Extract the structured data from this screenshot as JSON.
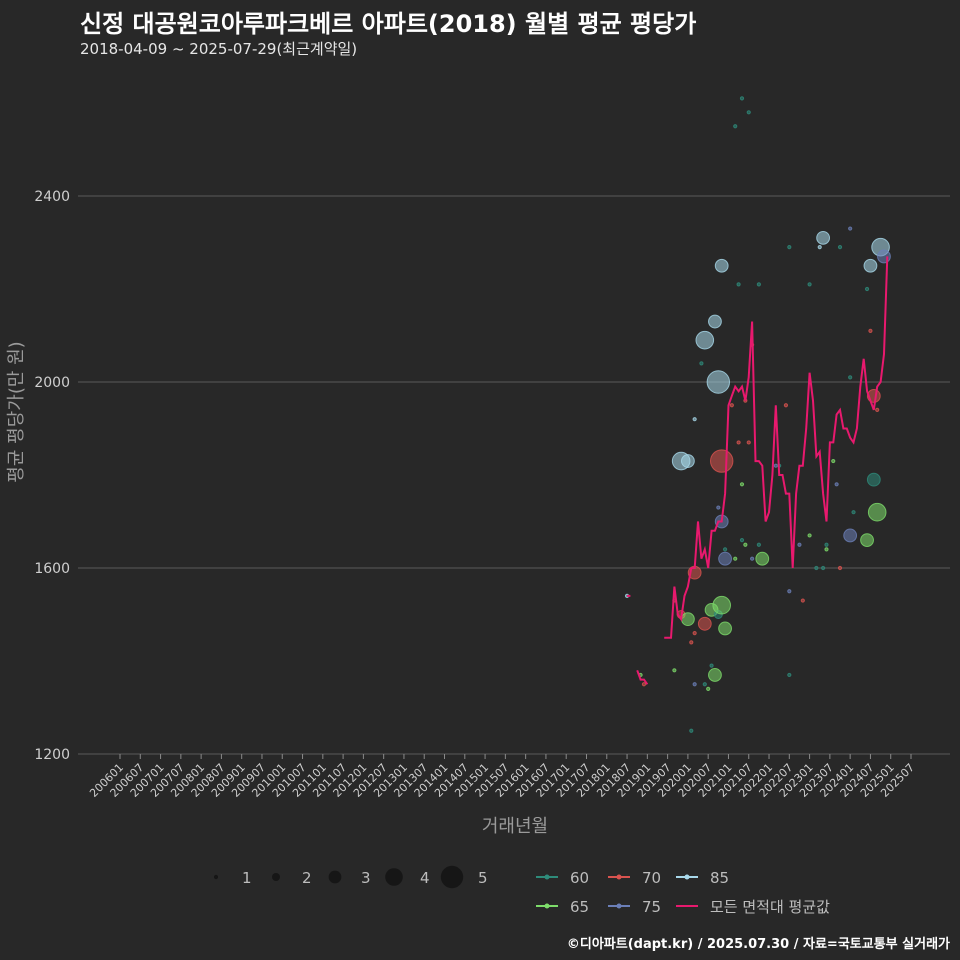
{
  "title": "신정 대공원코아루파크베르 아파트(2018) 월별 평균 평당가",
  "subtitle": "2018-04-09 ~ 2025-07-29(최근계약일)",
  "footer": "©디아파트(dapt.kr) / 2025.07.30 / 자료=국토교통부 실거래가",
  "chart_data": {
    "type": "scatter",
    "xlabel": "거래년월",
    "ylabel": "평균 평당가(만 원)",
    "ylim": [
      1200,
      2520
    ],
    "yticks": [
      1200,
      1600,
      2000,
      2400
    ],
    "xticks": [
      "200601",
      "200607",
      "200701",
      "200707",
      "200801",
      "200807",
      "200901",
      "200907",
      "201001",
      "201007",
      "201101",
      "201107",
      "201201",
      "201207",
      "201301",
      "201307",
      "201401",
      "201407",
      "201501",
      "201507",
      "201601",
      "201607",
      "201701",
      "201707",
      "201801",
      "201807",
      "201901",
      "201907",
      "202001",
      "202007",
      "202101",
      "202107",
      "202201",
      "202207",
      "202301",
      "202307",
      "202401",
      "202407",
      "202501",
      "202507"
    ],
    "size_legend": [
      "1",
      "2",
      "3",
      "4",
      "5"
    ],
    "area_legend": [
      {
        "name": "60",
        "color": "#2e8b7a"
      },
      {
        "name": "70",
        "color": "#d9534f"
      },
      {
        "name": "85",
        "color": "#a8d8ea"
      },
      {
        "name": "65",
        "color": "#7ddc6a"
      },
      {
        "name": "75",
        "color": "#6b7fb8"
      },
      {
        "name": "모든 면적대 평균값",
        "color": "#e8196e"
      }
    ],
    "points": [
      {
        "x": "2018-07",
        "y": 1540,
        "area": "85",
        "n": 1
      },
      {
        "x": "2018-11",
        "y": 1370,
        "area": "65",
        "n": 1
      },
      {
        "x": "2018-12",
        "y": 1350,
        "area": "70",
        "n": 1
      },
      {
        "x": "2019-09",
        "y": 1530,
        "area": "70",
        "n": 1
      },
      {
        "x": "2019-09",
        "y": 1380,
        "area": "65",
        "n": 1
      },
      {
        "x": "2019-11",
        "y": 1830,
        "area": "85",
        "n": 4
      },
      {
        "x": "2019-11",
        "y": 1500,
        "area": "70",
        "n": 2
      },
      {
        "x": "2020-01",
        "y": 1830,
        "area": "85",
        "n": 3
      },
      {
        "x": "2020-01",
        "y": 1490,
        "area": "65",
        "n": 3
      },
      {
        "x": "2020-02",
        "y": 1440,
        "area": "70",
        "n": 1
      },
      {
        "x": "2020-02",
        "y": 1250,
        "area": "60",
        "n": 1
      },
      {
        "x": "2020-03",
        "y": 1590,
        "area": "70",
        "n": 3
      },
      {
        "x": "2020-03",
        "y": 1350,
        "area": "75",
        "n": 1
      },
      {
        "x": "2020-03",
        "y": 1460,
        "area": "70",
        "n": 1
      },
      {
        "x": "2020-03",
        "y": 1920,
        "area": "85",
        "n": 1
      },
      {
        "x": "2020-05",
        "y": 2040,
        "area": "60",
        "n": 1
      },
      {
        "x": "2020-06",
        "y": 2090,
        "area": "85",
        "n": 4
      },
      {
        "x": "2020-06",
        "y": 1480,
        "area": "70",
        "n": 3
      },
      {
        "x": "2020-06",
        "y": 1350,
        "area": "60",
        "n": 1
      },
      {
        "x": "2020-07",
        "y": 1340,
        "area": "65",
        "n": 1
      },
      {
        "x": "2020-08",
        "y": 1510,
        "area": "65",
        "n": 3
      },
      {
        "x": "2020-08",
        "y": 1390,
        "area": "60",
        "n": 1
      },
      {
        "x": "2020-09",
        "y": 2130,
        "area": "85",
        "n": 3
      },
      {
        "x": "2020-09",
        "y": 1370,
        "area": "65",
        "n": 3
      },
      {
        "x": "2020-10",
        "y": 2000,
        "area": "85",
        "n": 5
      },
      {
        "x": "2020-10",
        "y": 1730,
        "area": "75",
        "n": 1
      },
      {
        "x": "2020-10",
        "y": 1500,
        "area": "60",
        "n": 2
      },
      {
        "x": "2020-11",
        "y": 1830,
        "area": "70",
        "n": 5
      },
      {
        "x": "2020-11",
        "y": 1700,
        "area": "75",
        "n": 3
      },
      {
        "x": "2020-11",
        "y": 2250,
        "area": "85",
        "n": 3
      },
      {
        "x": "2020-11",
        "y": 1520,
        "area": "65",
        "n": 4
      },
      {
        "x": "2020-12",
        "y": 1620,
        "area": "75",
        "n": 3
      },
      {
        "x": "2020-12",
        "y": 1470,
        "area": "65",
        "n": 3
      },
      {
        "x": "2020-12",
        "y": 1640,
        "area": "60",
        "n": 1
      },
      {
        "x": "2021-02",
        "y": 1950,
        "area": "70",
        "n": 1
      },
      {
        "x": "2021-03",
        "y": 2550,
        "area": "60",
        "n": 1
      },
      {
        "x": "2021-03",
        "y": 1620,
        "area": "65",
        "n": 1
      },
      {
        "x": "2021-04",
        "y": 2210,
        "area": "60",
        "n": 1
      },
      {
        "x": "2021-04",
        "y": 1870,
        "area": "70",
        "n": 1
      },
      {
        "x": "2021-05",
        "y": 2610,
        "area": "60",
        "n": 1
      },
      {
        "x": "2021-05",
        "y": 1780,
        "area": "65",
        "n": 1
      },
      {
        "x": "2021-05",
        "y": 1660,
        "area": "60",
        "n": 1
      },
      {
        "x": "2021-06",
        "y": 1960,
        "area": "70",
        "n": 1
      },
      {
        "x": "2021-06",
        "y": 1650,
        "area": "65",
        "n": 1
      },
      {
        "x": "2021-07",
        "y": 2580,
        "area": "60",
        "n": 1
      },
      {
        "x": "2021-07",
        "y": 1870,
        "area": "70",
        "n": 1
      },
      {
        "x": "2021-08",
        "y": 2080,
        "area": "70",
        "n": 1
      },
      {
        "x": "2021-08",
        "y": 1620,
        "area": "75",
        "n": 1
      },
      {
        "x": "2021-10",
        "y": 2210,
        "area": "60",
        "n": 1
      },
      {
        "x": "2021-10",
        "y": 1650,
        "area": "60",
        "n": 1
      },
      {
        "x": "2021-11",
        "y": 1620,
        "area": "65",
        "n": 3
      },
      {
        "x": "2022-03",
        "y": 1820,
        "area": "75",
        "n": 1
      },
      {
        "x": "2022-04",
        "y": 1820,
        "area": "60",
        "n": 1
      },
      {
        "x": "2022-06",
        "y": 1950,
        "area": "70",
        "n": 1
      },
      {
        "x": "2022-07",
        "y": 1550,
        "area": "75",
        "n": 1
      },
      {
        "x": "2022-07",
        "y": 1370,
        "area": "60",
        "n": 1
      },
      {
        "x": "2022-07",
        "y": 2290,
        "area": "60",
        "n": 1
      },
      {
        "x": "2022-10",
        "y": 1650,
        "area": "75",
        "n": 1
      },
      {
        "x": "2022-11",
        "y": 1530,
        "area": "70",
        "n": 1
      },
      {
        "x": "2023-01",
        "y": 1670,
        "area": "65",
        "n": 1
      },
      {
        "x": "2023-01",
        "y": 2210,
        "area": "60",
        "n": 1
      },
      {
        "x": "2023-03",
        "y": 1600,
        "area": "60",
        "n": 1
      },
      {
        "x": "2023-04",
        "y": 2290,
        "area": "85",
        "n": 1
      },
      {
        "x": "2023-05",
        "y": 2310,
        "area": "85",
        "n": 3
      },
      {
        "x": "2023-05",
        "y": 1600,
        "area": "60",
        "n": 1
      },
      {
        "x": "2023-06",
        "y": 1640,
        "area": "65",
        "n": 1
      },
      {
        "x": "2023-06",
        "y": 1650,
        "area": "60",
        "n": 1
      },
      {
        "x": "2023-08",
        "y": 1830,
        "area": "65",
        "n": 1
      },
      {
        "x": "2023-09",
        "y": 1780,
        "area": "75",
        "n": 1
      },
      {
        "x": "2023-10",
        "y": 1600,
        "area": "70",
        "n": 1
      },
      {
        "x": "2023-10",
        "y": 2290,
        "area": "60",
        "n": 1
      },
      {
        "x": "2024-01",
        "y": 2330,
        "area": "75",
        "n": 1
      },
      {
        "x": "2024-01",
        "y": 2010,
        "area": "60",
        "n": 1
      },
      {
        "x": "2024-01",
        "y": 1670,
        "area": "75",
        "n": 3
      },
      {
        "x": "2024-02",
        "y": 1720,
        "area": "60",
        "n": 1
      },
      {
        "x": "2024-06",
        "y": 2200,
        "area": "60",
        "n": 1
      },
      {
        "x": "2024-06",
        "y": 1660,
        "area": "65",
        "n": 3
      },
      {
        "x": "2024-07",
        "y": 2250,
        "area": "85",
        "n": 3
      },
      {
        "x": "2024-07",
        "y": 2110,
        "area": "70",
        "n": 1
      },
      {
        "x": "2024-08",
        "y": 1970,
        "area": "70",
        "n": 3
      },
      {
        "x": "2024-08",
        "y": 1790,
        "area": "60",
        "n": 3
      },
      {
        "x": "2024-09",
        "y": 1720,
        "area": "65",
        "n": 4
      },
      {
        "x": "2024-09",
        "y": 1940,
        "area": "70",
        "n": 1
      },
      {
        "x": "2024-10",
        "y": 2290,
        "area": "85",
        "n": 4
      },
      {
        "x": "2024-11",
        "y": 2270,
        "area": "75",
        "n": 3
      }
    ],
    "avg_line": [
      [
        [
          "2018-07",
          1540
        ],
        [
          "2018-08",
          1540
        ]
      ],
      [
        [
          "2018-10",
          1380
        ],
        [
          "2018-11",
          1360
        ],
        [
          "2018-12",
          1360
        ],
        [
          "2019-01",
          1350
        ]
      ],
      [
        [
          "2019-06",
          1450
        ],
        [
          "2019-07",
          1450
        ],
        [
          "2019-08",
          1450
        ],
        [
          "2019-09",
          1560
        ],
        [
          "2019-10",
          1500
        ],
        [
          "2019-11",
          1490
        ],
        [
          "2019-12",
          1540
        ],
        [
          "2020-01",
          1560
        ],
        [
          "2020-02",
          1600
        ],
        [
          "2020-03",
          1600
        ],
        [
          "2020-04",
          1700
        ],
        [
          "2020-05",
          1620
        ],
        [
          "2020-06",
          1640
        ],
        [
          "2020-07",
          1600
        ],
        [
          "2020-08",
          1680
        ],
        [
          "2020-09",
          1680
        ],
        [
          "2020-10",
          1700
        ],
        [
          "2020-11",
          1700
        ],
        [
          "2020-12",
          1760
        ],
        [
          "2021-01",
          1950
        ],
        [
          "2021-02",
          1970
        ],
        [
          "2021-03",
          1990
        ],
        [
          "2021-04",
          1980
        ],
        [
          "2021-05",
          1990
        ],
        [
          "2021-06",
          1960
        ],
        [
          "2021-07",
          2010
        ],
        [
          "2021-08",
          2130
        ],
        [
          "2021-09",
          1830
        ],
        [
          "2021-10",
          1830
        ],
        [
          "2021-11",
          1820
        ],
        [
          "2021-12",
          1700
        ],
        [
          "2022-01",
          1720
        ],
        [
          "2022-02",
          1800
        ],
        [
          "2022-03",
          1950
        ],
        [
          "2022-04",
          1800
        ],
        [
          "2022-05",
          1800
        ],
        [
          "2022-06",
          1760
        ],
        [
          "2022-07",
          1760
        ],
        [
          "2022-08",
          1600
        ],
        [
          "2022-09",
          1760
        ],
        [
          "2022-10",
          1820
        ],
        [
          "2022-11",
          1820
        ],
        [
          "2022-12",
          1900
        ],
        [
          "2023-01",
          2020
        ],
        [
          "2023-02",
          1960
        ],
        [
          "2023-03",
          1840
        ],
        [
          "2023-04",
          1850
        ],
        [
          "2023-05",
          1760
        ],
        [
          "2023-06",
          1700
        ],
        [
          "2023-07",
          1870
        ],
        [
          "2023-08",
          1870
        ],
        [
          "2023-09",
          1930
        ],
        [
          "2023-10",
          1940
        ],
        [
          "2023-11",
          1900
        ],
        [
          "2023-12",
          1900
        ],
        [
          "2024-01",
          1880
        ],
        [
          "2024-02",
          1870
        ],
        [
          "2024-03",
          1900
        ],
        [
          "2024-04",
          1990
        ],
        [
          "2024-05",
          2050
        ],
        [
          "2024-06",
          1980
        ],
        [
          "2024-07",
          1960
        ],
        [
          "2024-08",
          1940
        ],
        [
          "2024-09",
          1990
        ],
        [
          "2024-10",
          2000
        ],
        [
          "2024-11",
          2060
        ],
        [
          "2024-12",
          2270
        ]
      ]
    ]
  }
}
